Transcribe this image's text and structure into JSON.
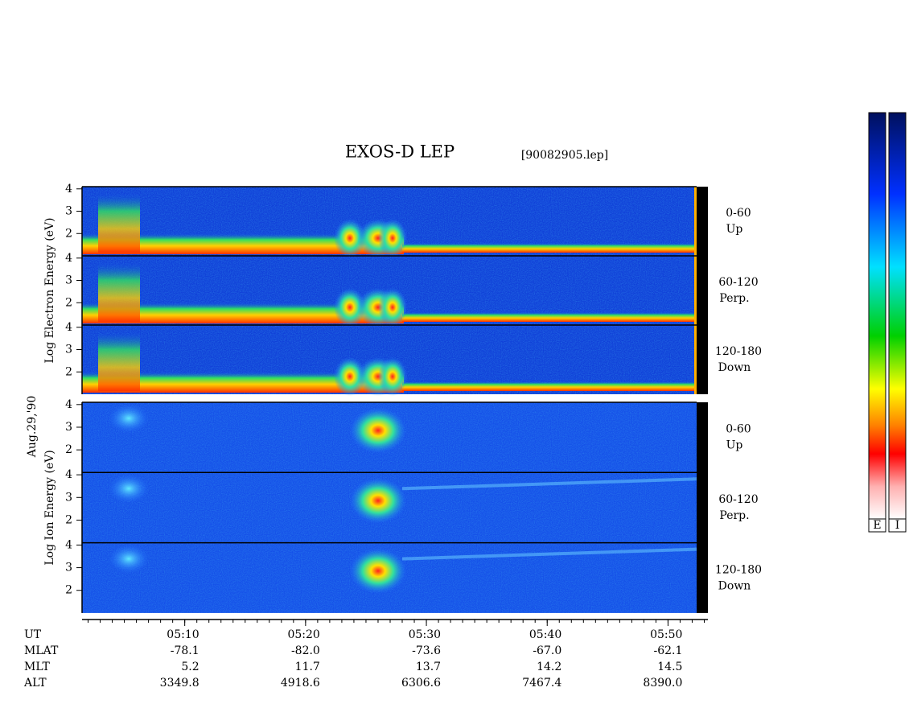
{
  "chart_data": [
    {
      "type": "spectrogram",
      "ylabel": "Log   Electron   Energy (eV)",
      "ylim": [
        1,
        4.1
      ],
      "yticks": [
        2,
        3,
        4
      ],
      "panels": [
        {
          "label": [
            "0-60",
            "Up"
          ]
        },
        {
          "label": [
            "60-120",
            "Perp."
          ]
        },
        {
          "label": [
            "120-180",
            "Down"
          ]
        }
      ]
    },
    {
      "type": "spectrogram",
      "ylabel": "Log   Ion   Energy (eV)",
      "ylim": [
        1,
        4.1
      ],
      "yticks": [
        2,
        3,
        4
      ],
      "panels": [
        {
          "label": [
            "0-60",
            "Up"
          ]
        },
        {
          "label": [
            "60-120",
            "Perp."
          ]
        },
        {
          "label": [
            "120-180",
            "Down"
          ]
        }
      ]
    }
  ],
  "title": "EXOS-D LEP",
  "file": "[90082905.lep]",
  "date": "Aug.29,'90",
  "xlim": [
    301.5,
    353.3
  ],
  "xticks": [
    {
      "value": 310,
      "label": "05:10"
    },
    {
      "value": 320,
      "label": "05:20"
    },
    {
      "value": 330,
      "label": "05:30"
    },
    {
      "value": 340,
      "label": "05:40"
    },
    {
      "value": 350,
      "label": "05:50"
    }
  ],
  "ephemeris": {
    "labels": [
      "UT",
      "MLAT",
      "MLT",
      "ALT"
    ],
    "rows": [
      [
        "-78.1",
        "-82.0",
        "-73.6",
        "-67.0",
        "-62.1"
      ],
      [
        "5.2",
        "11.7",
        "13.7",
        "14.2",
        "14.5"
      ],
      [
        "3349.8",
        "4918.6",
        "6306.6",
        "7467.4",
        "8390.0"
      ]
    ]
  },
  "colorbars": [
    "E",
    "I"
  ]
}
